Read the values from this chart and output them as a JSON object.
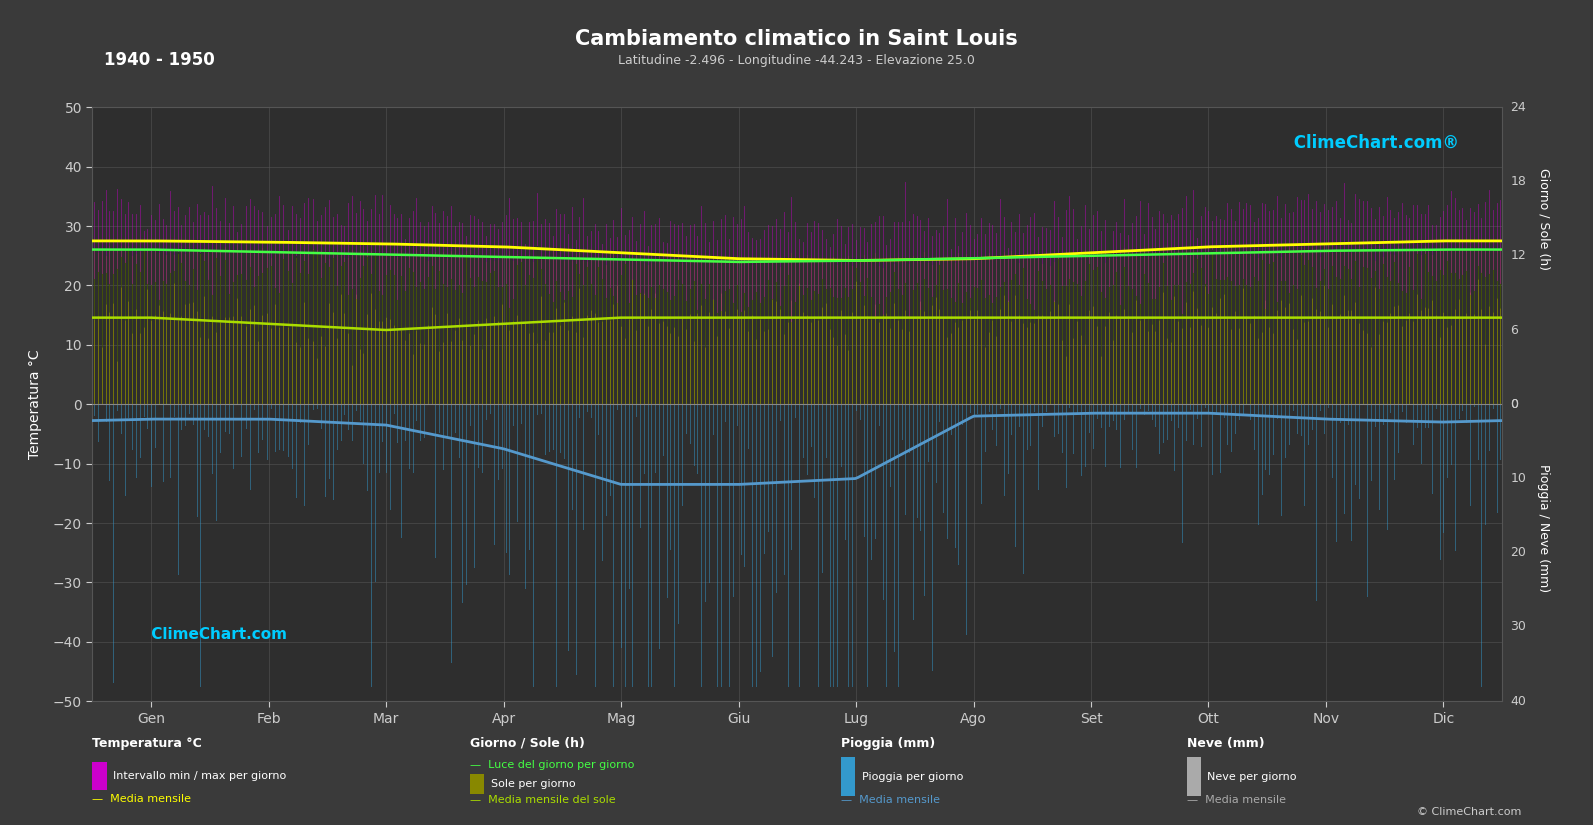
{
  "title": "Cambiamento climatico in Saint Louis",
  "subtitle": "Latitudine -2.496 - Longitudine -44.243 - Elevazione 25.0",
  "year_range": "1940 - 1950",
  "bg_color": "#3a3a3a",
  "plot_bg_color": "#2e2e2e",
  "months": [
    "Gen",
    "Feb",
    "Mar",
    "Apr",
    "Mag",
    "Giu",
    "Lug",
    "Ago",
    "Set",
    "Ott",
    "Nov",
    "Dic"
  ],
  "days_per_month": [
    31,
    28,
    31,
    30,
    31,
    30,
    31,
    31,
    30,
    31,
    30,
    31
  ],
  "temp_mean": [
    27.5,
    27.3,
    27.0,
    26.5,
    25.5,
    24.5,
    24.2,
    24.5,
    25.5,
    26.5,
    27.0,
    27.5
  ],
  "temp_max_daily": [
    33,
    33,
    32,
    31,
    30,
    29.5,
    29.5,
    30,
    31,
    32,
    33,
    33
  ],
  "temp_min_daily": [
    22,
    22,
    22,
    21,
    20,
    19,
    19,
    19,
    20,
    21,
    22,
    22
  ],
  "daylight_hours": [
    12.5,
    12.3,
    12.1,
    11.9,
    11.7,
    11.5,
    11.6,
    11.8,
    12.0,
    12.2,
    12.4,
    12.5
  ],
  "sunshine_hours": [
    7.0,
    6.5,
    6.0,
    6.5,
    7.0,
    7.0,
    7.0,
    7.0,
    7.0,
    7.0,
    7.0,
    7.0
  ],
  "rain_intensity": [
    1.2,
    1.2,
    1.5,
    2.5,
    5.0,
    5.5,
    5.0,
    1.0,
    0.8,
    0.8,
    1.2,
    1.5
  ],
  "rain_mean_neg": [
    -2.5,
    -2.5,
    -3.5,
    -7.5,
    -13.5,
    -13.5,
    -12.5,
    -2.0,
    -1.5,
    -1.5,
    -2.5,
    -3.0
  ],
  "grid_color": "#555555",
  "text_color": "#ffffff",
  "axis_text_color": "#cccccc",
  "temp_range_color": "#cc00cc",
  "temp_mean_color": "#ffff00",
  "daylight_color": "#44ff44",
  "sunshine_fill_color": "#888800",
  "daylight_fill_color": "#4a5e00",
  "sun_mean_color": "#aadd00",
  "rain_bar_color": "#3399cc",
  "rain_mean_color": "#5599cc",
  "snow_bar_color": "#aaaaaa",
  "logo_color": "#00ccff"
}
